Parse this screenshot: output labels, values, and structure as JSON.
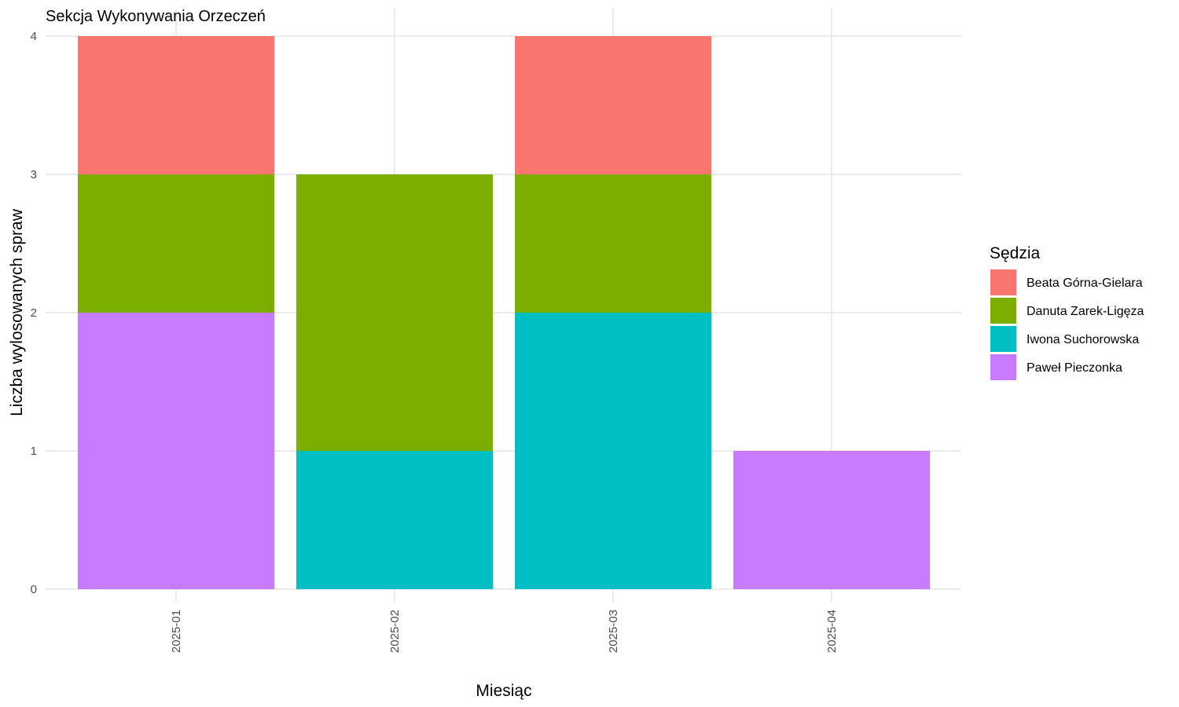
{
  "chart_data": {
    "type": "bar",
    "stacked": true,
    "title": "Sekcja Wykonywania Orzeczeń",
    "xlabel": "Miesiąc",
    "ylabel": "Liczba wylosowanych spraw",
    "categories": [
      "2025-01",
      "2025-02",
      "2025-03",
      "2025-04"
    ],
    "ylim": [
      0,
      4
    ],
    "yticks": [
      0,
      1,
      2,
      3,
      4
    ],
    "grid": true,
    "legend": {
      "title": "Sędzia",
      "position": "right"
    },
    "series": [
      {
        "name": "Beata Górna-Gielara",
        "color": "#F8766D",
        "values": [
          1,
          0,
          1,
          0
        ]
      },
      {
        "name": "Danuta Zarek-Ligęza",
        "color": "#7CAE00",
        "values": [
          1,
          2,
          1,
          0
        ]
      },
      {
        "name": "Iwona Suchorowska",
        "color": "#00BFC4",
        "values": [
          0,
          1,
          2,
          0
        ]
      },
      {
        "name": "Paweł Pieczonka",
        "color": "#C77CFF",
        "values": [
          2,
          0,
          0,
          1
        ]
      }
    ]
  }
}
